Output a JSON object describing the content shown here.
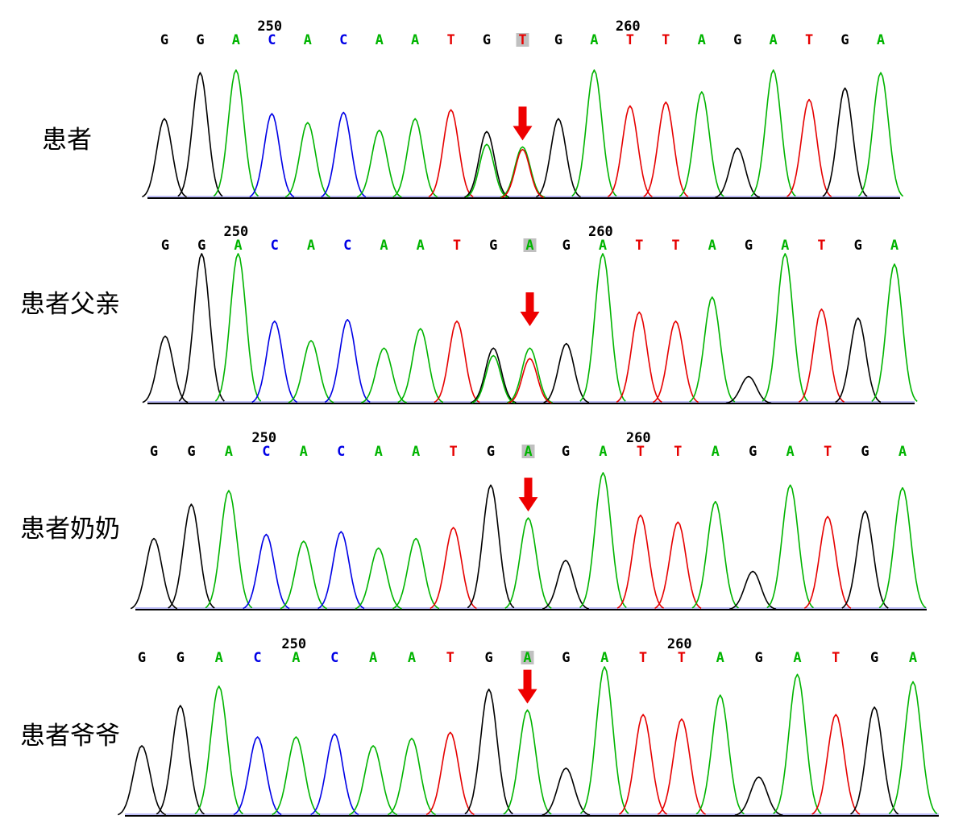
{
  "figure": {
    "colors": {
      "A": "#00b400",
      "C": "#0000e6",
      "G": "#000000",
      "T": "#e60000",
      "arrow": "#ee0000",
      "highlight": "#c0c0c0",
      "baseline": "#000000"
    }
  },
  "chart_data": [
    {
      "type": "line",
      "title": "",
      "sample_label": "患者",
      "bases": [
        "G",
        "G",
        "A",
        "C",
        "A",
        "C",
        "A",
        "A",
        "T",
        "G",
        "T",
        "G",
        "A",
        "T",
        "T",
        "A",
        "G",
        "A",
        "T",
        "G",
        "A"
      ],
      "position_ticks": [
        {
          "label": "250",
          "base_index": 3
        },
        {
          "label": "260",
          "base_index": 13
        }
      ],
      "highlighted_base_index": 10,
      "arrow_base_index": 10,
      "peaks": [
        {
          "base": "G",
          "height": 0.62
        },
        {
          "base": "G",
          "height": 0.98
        },
        {
          "base": "A",
          "height": 1.0
        },
        {
          "base": "C",
          "height": 0.66
        },
        {
          "base": "A",
          "height": 0.59
        },
        {
          "base": "C",
          "height": 0.67
        },
        {
          "base": "A",
          "height": 0.53
        },
        {
          "base": "A",
          "height": 0.62
        },
        {
          "base": "T",
          "height": 0.69
        },
        {
          "base": "G",
          "height": 0.52
        },
        {
          "base": "A",
          "height": 0.4
        },
        {
          "base": "G",
          "height": 0.62
        },
        {
          "base": "A",
          "height": 1.0
        },
        {
          "base": "T",
          "height": 0.72
        },
        {
          "base": "T",
          "height": 0.75
        },
        {
          "base": "A",
          "height": 0.83
        },
        {
          "base": "G",
          "height": 0.39
        },
        {
          "base": "A",
          "height": 1.0
        },
        {
          "base": "T",
          "height": 0.77
        },
        {
          "base": "G",
          "height": 0.86
        },
        {
          "base": "A",
          "height": 0.98
        }
      ],
      "secondary_peaks": [
        {
          "base_index": 9,
          "base": "A",
          "height": 0.42
        },
        {
          "base_index": 10,
          "base": "T",
          "height": 0.38
        }
      ]
    },
    {
      "type": "line",
      "title": "",
      "sample_label": "患者父亲",
      "bases": [
        "G",
        "G",
        "A",
        "C",
        "A",
        "C",
        "A",
        "A",
        "T",
        "G",
        "A",
        "G",
        "A",
        "T",
        "T",
        "A",
        "G",
        "A",
        "T",
        "G",
        "A"
      ],
      "position_ticks": [
        {
          "label": "250",
          "base_index": 2
        },
        {
          "label": "260",
          "base_index": 12
        }
      ],
      "highlighted_base_index": 10,
      "arrow_base_index": 10,
      "peaks": [
        {
          "base": "G",
          "height": 0.45
        },
        {
          "base": "G",
          "height": 1.0
        },
        {
          "base": "A",
          "height": 1.0
        },
        {
          "base": "C",
          "height": 0.55
        },
        {
          "base": "A",
          "height": 0.42
        },
        {
          "base": "C",
          "height": 0.56
        },
        {
          "base": "A",
          "height": 0.37
        },
        {
          "base": "A",
          "height": 0.5
        },
        {
          "base": "T",
          "height": 0.55
        },
        {
          "base": "G",
          "height": 0.37
        },
        {
          "base": "A",
          "height": 0.37
        },
        {
          "base": "G",
          "height": 0.4
        },
        {
          "base": "A",
          "height": 1.0
        },
        {
          "base": "T",
          "height": 0.61
        },
        {
          "base": "T",
          "height": 0.55
        },
        {
          "base": "A",
          "height": 0.71
        },
        {
          "base": "G",
          "height": 0.18
        },
        {
          "base": "A",
          "height": 1.0
        },
        {
          "base": "T",
          "height": 0.63
        },
        {
          "base": "G",
          "height": 0.57
        },
        {
          "base": "A",
          "height": 0.93
        }
      ],
      "secondary_peaks": [
        {
          "base_index": 9,
          "base": "A",
          "height": 0.32
        },
        {
          "base_index": 10,
          "base": "T",
          "height": 0.3
        }
      ]
    },
    {
      "type": "line",
      "title": "",
      "sample_label": "患者奶奶",
      "bases": [
        "G",
        "G",
        "A",
        "C",
        "A",
        "C",
        "A",
        "A",
        "T",
        "G",
        "A",
        "G",
        "A",
        "T",
        "T",
        "A",
        "G",
        "A",
        "T",
        "G",
        "A"
      ],
      "position_ticks": [
        {
          "label": "250",
          "base_index": 3
        },
        {
          "label": "260",
          "base_index": 13
        }
      ],
      "highlighted_base_index": 10,
      "arrow_base_index": 10,
      "peaks": [
        {
          "base": "G",
          "height": 0.52
        },
        {
          "base": "G",
          "height": 0.77
        },
        {
          "base": "A",
          "height": 0.87
        },
        {
          "base": "C",
          "height": 0.55
        },
        {
          "base": "A",
          "height": 0.5
        },
        {
          "base": "C",
          "height": 0.57
        },
        {
          "base": "A",
          "height": 0.45
        },
        {
          "base": "A",
          "height": 0.52
        },
        {
          "base": "T",
          "height": 0.6
        },
        {
          "base": "G",
          "height": 0.91
        },
        {
          "base": "A",
          "height": 0.67
        },
        {
          "base": "G",
          "height": 0.36
        },
        {
          "base": "A",
          "height": 1.0
        },
        {
          "base": "T",
          "height": 0.69
        },
        {
          "base": "T",
          "height": 0.64
        },
        {
          "base": "A",
          "height": 0.79
        },
        {
          "base": "G",
          "height": 0.28
        },
        {
          "base": "A",
          "height": 0.91
        },
        {
          "base": "T",
          "height": 0.68
        },
        {
          "base": "G",
          "height": 0.72
        },
        {
          "base": "A",
          "height": 0.89
        }
      ],
      "secondary_peaks": []
    },
    {
      "type": "line",
      "title": "",
      "sample_label": "患者爷爷",
      "bases": [
        "G",
        "G",
        "A",
        "C",
        "A",
        "C",
        "A",
        "A",
        "T",
        "G",
        "A",
        "G",
        "A",
        "T",
        "T",
        "A",
        "G",
        "A",
        "T",
        "G",
        "A"
      ],
      "position_ticks": [
        {
          "label": "250",
          "base_index": 4
        },
        {
          "label": "260",
          "base_index": 14
        }
      ],
      "highlighted_base_index": 10,
      "arrow_base_index": 10,
      "peaks": [
        {
          "base": "G",
          "height": 0.47
        },
        {
          "base": "G",
          "height": 0.74
        },
        {
          "base": "A",
          "height": 0.87
        },
        {
          "base": "C",
          "height": 0.53
        },
        {
          "base": "A",
          "height": 0.53
        },
        {
          "base": "C",
          "height": 0.55
        },
        {
          "base": "A",
          "height": 0.47
        },
        {
          "base": "A",
          "height": 0.52
        },
        {
          "base": "T",
          "height": 0.56
        },
        {
          "base": "G",
          "height": 0.85
        },
        {
          "base": "A",
          "height": 0.71
        },
        {
          "base": "G",
          "height": 0.32
        },
        {
          "base": "A",
          "height": 1.0
        },
        {
          "base": "T",
          "height": 0.68
        },
        {
          "base": "T",
          "height": 0.65
        },
        {
          "base": "A",
          "height": 0.81
        },
        {
          "base": "G",
          "height": 0.26
        },
        {
          "base": "A",
          "height": 0.95
        },
        {
          "base": "T",
          "height": 0.68
        },
        {
          "base": "G",
          "height": 0.73
        },
        {
          "base": "A",
          "height": 0.9
        }
      ],
      "secondary_peaks": []
    }
  ]
}
